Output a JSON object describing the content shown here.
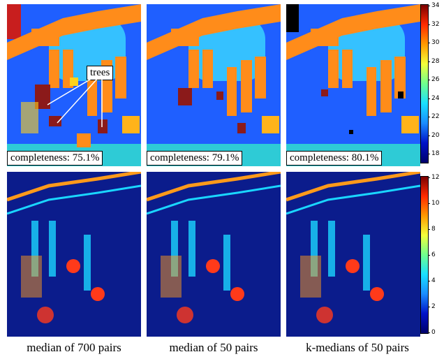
{
  "top_row": {
    "completeness": [
      "completeness: 75.1%",
      "completeness: 79.1%",
      "completeness: 80.1%"
    ],
    "annotation": "trees",
    "colorbar_ticks": [
      "34",
      "32",
      "30",
      "28",
      "26",
      "24",
      "22",
      "20",
      "18"
    ]
  },
  "bottom_row": {
    "colorbar_ticks": [
      "12",
      "10",
      "8",
      "6",
      "4",
      "2",
      "0"
    ]
  },
  "captions": [
    "median of 700 pairs",
    "median of 50 pairs",
    "k-medians of 50 pairs"
  ],
  "colors": {
    "height_low": "#1e5bff",
    "height_mid": "#33d6ff",
    "height_high": "#ff8a1e",
    "height_max": "#8b1a1a",
    "error_bg": "#0b1c8c"
  }
}
